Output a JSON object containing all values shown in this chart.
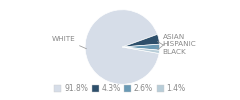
{
  "labels": [
    "WHITE",
    "BLACK",
    "HISPANIC",
    "ASIAN"
  ],
  "values": [
    91.8,
    4.3,
    2.6,
    1.4
  ],
  "colors": [
    "#d6dde8",
    "#2d4f6b",
    "#6a9ab5",
    "#b8cdd8"
  ],
  "legend_labels": [
    "91.8%",
    "4.3%",
    "2.6%",
    "1.4%"
  ],
  "startangle": -10,
  "label_fontsize": 5.2,
  "legend_fontsize": 5.5,
  "bg_color": "#ffffff",
  "text_color": "#888888",
  "line_color": "#999999"
}
